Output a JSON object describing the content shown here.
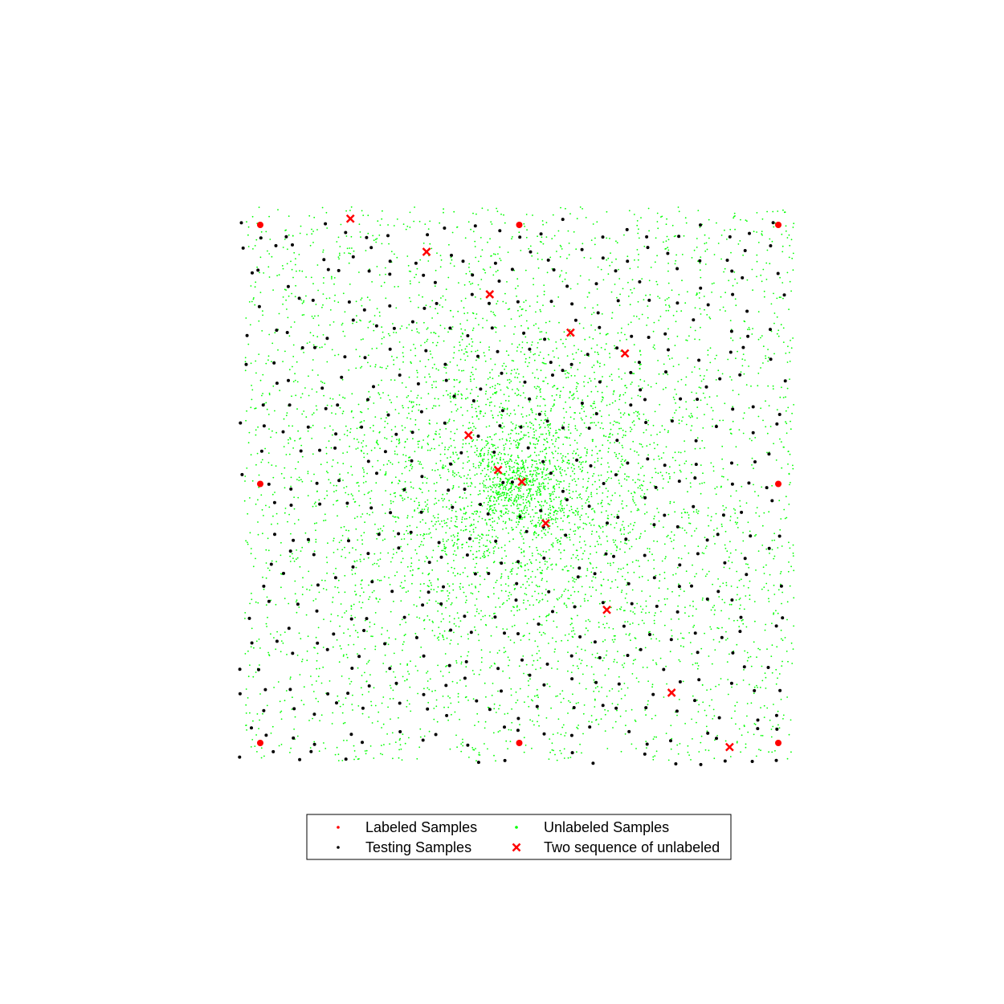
{
  "chart_data": {
    "type": "scatter",
    "title": "",
    "xlabel": "",
    "ylabel": "",
    "axes_visible": false,
    "xlim": [
      -0.02,
      1.02
    ],
    "ylim": [
      -0.04,
      1.04
    ],
    "legend_position": "bottom",
    "legend_columns": 2,
    "series": [
      {
        "name": "Labeled Samples",
        "marker": "dot",
        "color": "#ff0000",
        "points": [
          [
            0,
            0
          ],
          [
            0.5,
            0
          ],
          [
            1,
            0
          ],
          [
            0,
            0.5
          ],
          [
            1,
            0.5
          ],
          [
            0,
            1
          ],
          [
            0.5,
            1
          ],
          [
            1,
            1
          ]
        ]
      },
      {
        "name": "Unlabeled Samples",
        "marker": "dot",
        "color": "#00ff00",
        "distribution": "dense random field filling the square, concentrated near the center",
        "center": [
          0.5,
          0.5
        ]
      },
      {
        "name": "Testing Samples",
        "marker": "dot",
        "color": "#000000",
        "distribution": "roughly uniform jittered grid across the square",
        "grid_step": 0.049
      },
      {
        "name": "Two sequence of unlabeled",
        "marker": "x",
        "color": "#ff0000",
        "points": [
          [
            0.174,
            1.012
          ],
          [
            0.321,
            0.948
          ],
          [
            0.443,
            0.866
          ],
          [
            0.599,
            0.792
          ],
          [
            0.704,
            0.752
          ],
          [
            0.402,
            0.594
          ],
          [
            0.459,
            0.527
          ],
          [
            0.505,
            0.504
          ],
          [
            0.551,
            0.424
          ],
          [
            0.669,
            0.257
          ],
          [
            0.794,
            0.097
          ],
          [
            0.906,
            -0.008
          ]
        ]
      }
    ]
  }
}
